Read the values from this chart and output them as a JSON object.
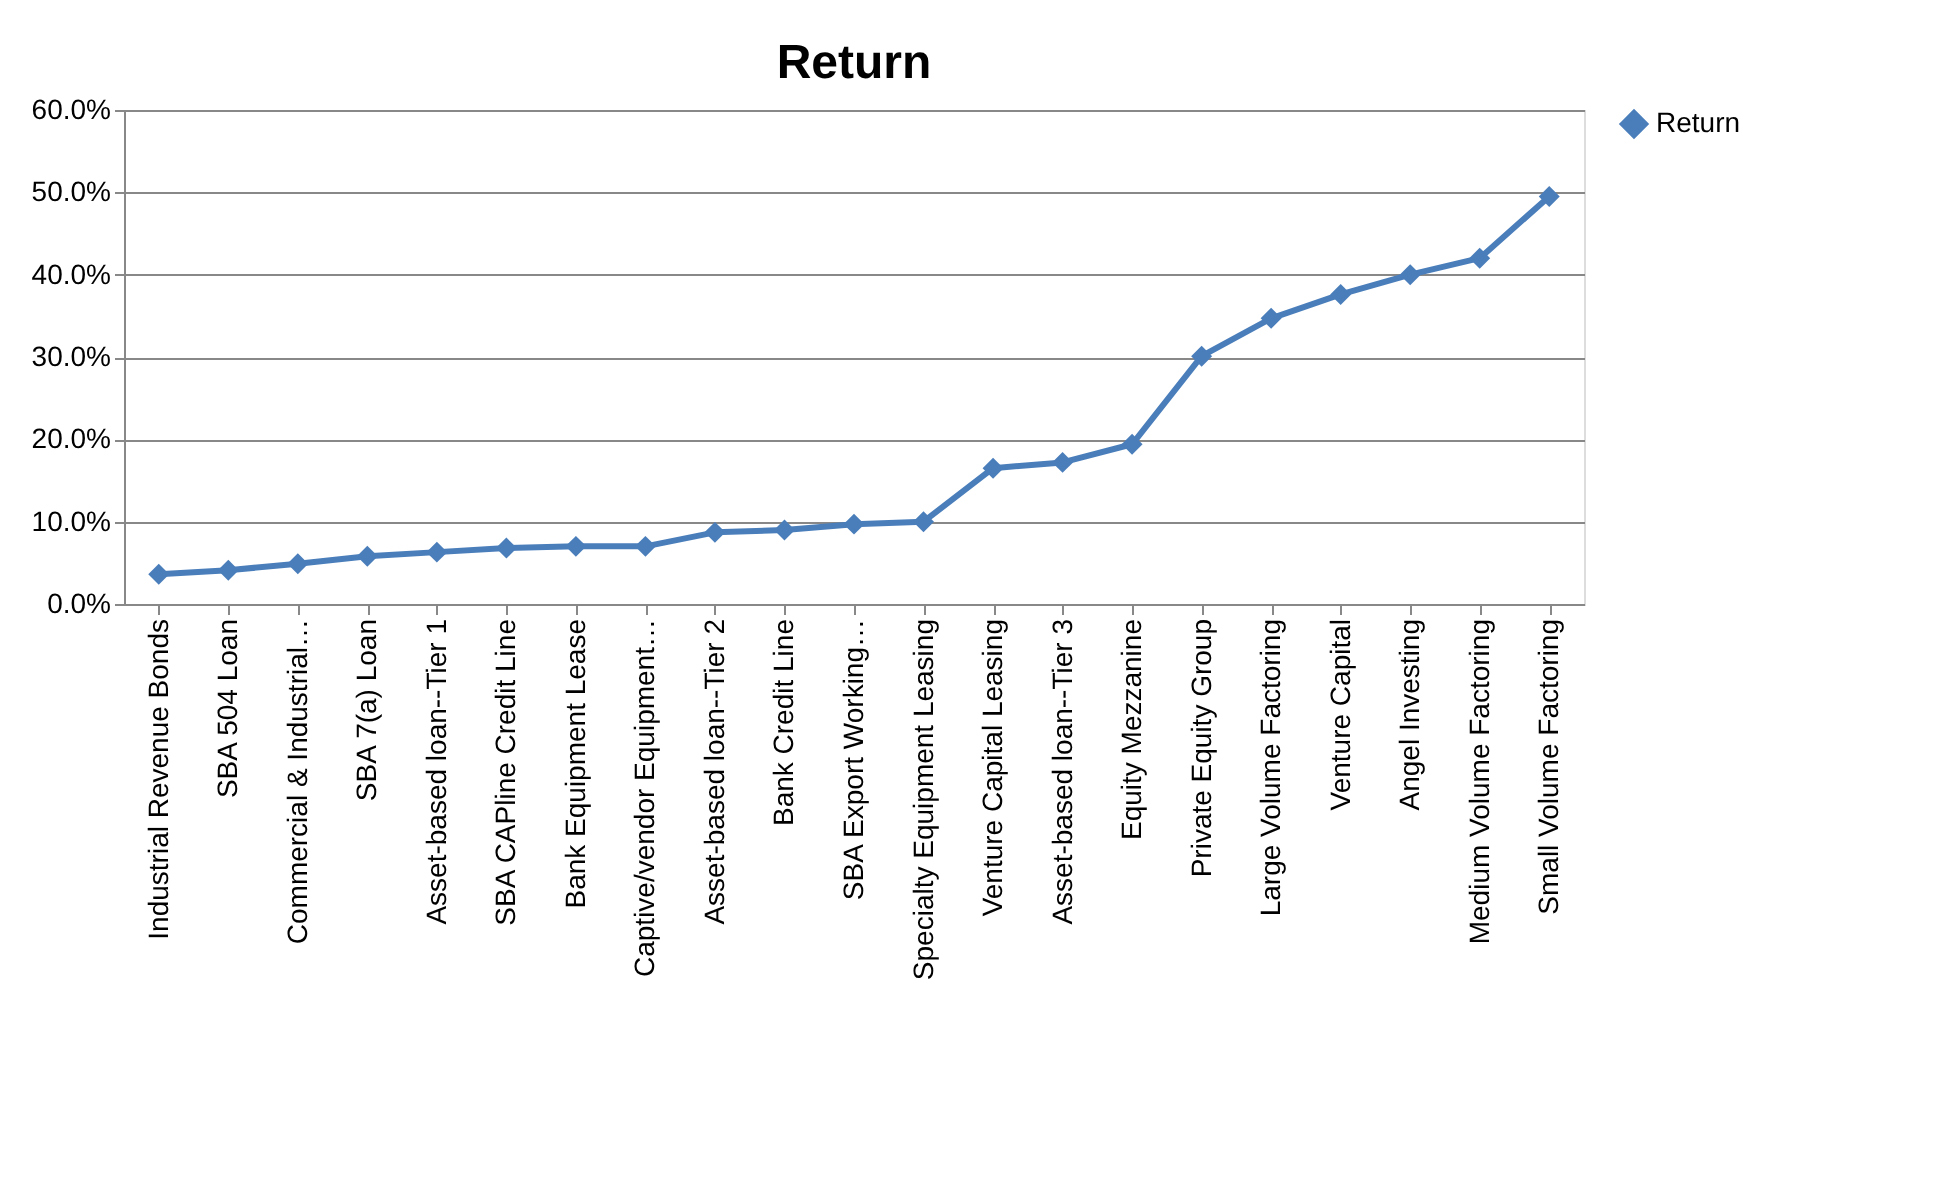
{
  "chart_data": {
    "type": "line",
    "title": "Return",
    "categories": [
      "Industrial Revenue Bonds",
      "SBA 504 Loan",
      "Commercial & Industrial…",
      "SBA 7(a) Loan",
      "Asset-based loan--Tier 1",
      "SBA CAPline Credit Line",
      "Bank Equipment Lease",
      "Captive/vendor Equipment…",
      "Asset-based loan--Tier 2",
      "Bank Credit Line",
      "SBA Export Working…",
      "Specialty Equipment Leasing",
      "Venture Capital Leasing",
      "Asset-based loan--Tier 3",
      "Equity Mezzanine",
      "Private Equity Group",
      "Large Volume Factoring",
      "Venture Capital",
      "Angel Investing",
      "Medium Volume Factoring",
      "Small Volume Factoring"
    ],
    "series": [
      {
        "name": "Return",
        "color": "#4a7ebb",
        "values": [
          3.6,
          4.1,
          4.9,
          5.8,
          6.3,
          6.8,
          7.0,
          7.0,
          8.7,
          9.0,
          9.7,
          10.0,
          16.5,
          17.2,
          19.4,
          30.1,
          34.7,
          37.6,
          40.0,
          42.0,
          49.5
        ]
      }
    ],
    "ylim": [
      0,
      60
    ],
    "yticks": [
      {
        "value": 0,
        "label": "0.0%"
      },
      {
        "value": 10,
        "label": "10.0%"
      },
      {
        "value": 20,
        "label": "20.0%"
      },
      {
        "value": 30,
        "label": "30.0%"
      },
      {
        "value": 40,
        "label": "40.0%"
      },
      {
        "value": 50,
        "label": "50.0%"
      },
      {
        "value": 60,
        "label": "60.0%"
      }
    ],
    "grid": "y",
    "legend": "right",
    "marker": "diamond",
    "line_style": "solid"
  }
}
